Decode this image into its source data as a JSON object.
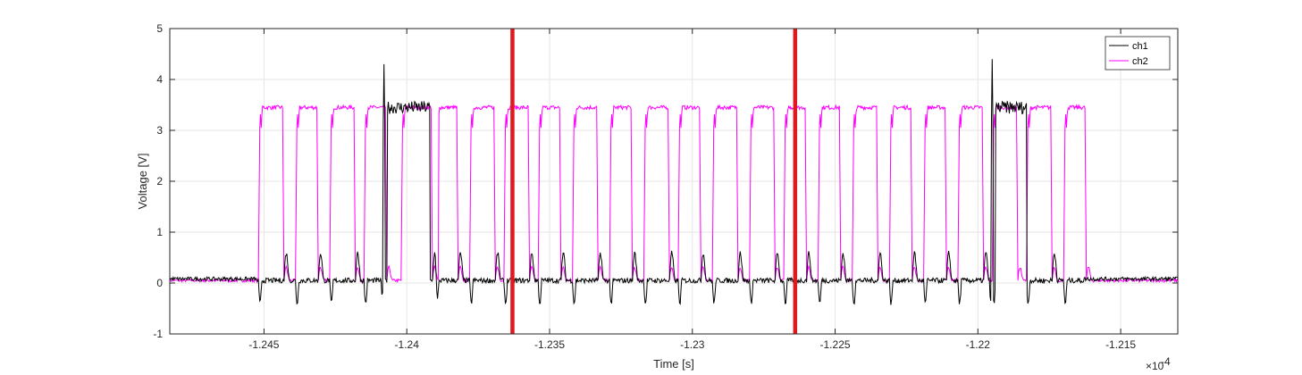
{
  "chart_data": {
    "type": "line",
    "xlabel": "Time [s]",
    "ylabel": "Voltage [V]",
    "x_exponent_label": "×10",
    "x_exponent_power": "-4",
    "xlim": [
      -1.2483,
      -1.213
    ],
    "ylim": [
      -1,
      5
    ],
    "x_unit_scale": 0.0001,
    "grid": true,
    "legend_position": "top-right",
    "x_ticks": [
      -1.245,
      -1.24,
      -1.235,
      -1.23,
      -1.225,
      -1.22,
      -1.215
    ],
    "x_tick_labels": [
      "-1.245",
      "-1.24",
      "-1.235",
      "-1.23",
      "-1.225",
      "-1.22",
      "-1.215"
    ],
    "y_ticks": [
      -1,
      0,
      1,
      2,
      3,
      4,
      5
    ],
    "y_tick_labels": [
      "-1",
      "0",
      "1",
      "2",
      "3",
      "4",
      "5"
    ],
    "colors": {
      "ch1": "#000000",
      "ch2": "#ff00ff",
      "markers": "#e0191e",
      "grid": "#e6e6e6"
    },
    "marker_lines_x": [
      -1.2363,
      -1.2264
    ],
    "series": [
      {
        "name": "ch1",
        "idle_ranges": [
          [
            -1.2483,
            -1.2453
          ],
          [
            -1.2163,
            -1.213
          ]
        ],
        "spikes": [
          {
            "x": -1.2408,
            "peak": 4.3,
            "dip": -0.4
          },
          {
            "x": -1.2195,
            "peak": 4.4,
            "dip": -0.5
          }
        ],
        "high_segments": [
          [
            -1.2407,
            -1.2392
          ],
          [
            -1.2194,
            -1.2183
          ]
        ],
        "edge_response": {
          "overshoot": 0.7,
          "undershoot": -0.45,
          "baseline": 0.05
        }
      },
      {
        "name": "ch2",
        "low_level": 0.05,
        "high_level": 3.45,
        "overshoot_peak": 3.65,
        "pulses": [
          [
            -1.2452,
            -1.2443
          ],
          [
            -1.2439,
            -1.2431
          ],
          [
            -1.2427,
            -1.2418
          ],
          [
            -1.2415,
            -1.2407
          ],
          [
            -1.2402,
            -1.2391
          ],
          [
            -1.239,
            -1.2382
          ],
          [
            -1.2378,
            -1.2369
          ],
          [
            -1.2366,
            -1.2357
          ],
          [
            -1.2354,
            -1.2346
          ],
          [
            -1.2342,
            -1.2333
          ],
          [
            -1.2329,
            -1.2321
          ],
          [
            -1.2317,
            -1.2308
          ],
          [
            -1.2305,
            -1.2297
          ],
          [
            -1.2293,
            -1.2284
          ],
          [
            -1.228,
            -1.2271
          ],
          [
            -1.2268,
            -1.226
          ],
          [
            -1.2256,
            -1.2248
          ],
          [
            -1.2244,
            -1.2235
          ],
          [
            -1.2231,
            -1.2223
          ],
          [
            -1.2219,
            -1.2211
          ],
          [
            -1.2207,
            -1.2198
          ],
          [
            -1.2195,
            -1.2186
          ],
          [
            -1.2183,
            -1.2174
          ],
          [
            -1.217,
            -1.2162
          ]
        ]
      }
    ]
  }
}
